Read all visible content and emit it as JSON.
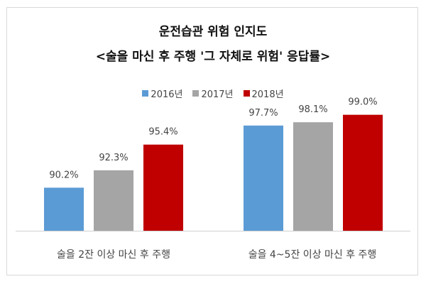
{
  "chart_data": {
    "type": "bar",
    "title": "운전습관 위험 인지도",
    "subtitle": "<술을 마신 후 주행 '그 자체로 위험' 응답률>",
    "categories": [
      "술을 2잔 이상 마신 후 주행",
      "술을 4~5잔 이상 마신 후 주행"
    ],
    "series": [
      {
        "name": "2016년",
        "color": "#5b9bd5",
        "values": [
          90.2,
          97.7
        ],
        "labels": [
          "90.2%",
          "97.7%"
        ]
      },
      {
        "name": "2017년",
        "color": "#a5a5a5",
        "values": [
          92.3,
          98.1
        ],
        "labels": [
          "92.3%",
          "98.1%"
        ]
      },
      {
        "name": "2018년",
        "color": "#c00000",
        "values": [
          95.4,
          99.0
        ],
        "labels": [
          "95.4%",
          "99.0%"
        ]
      }
    ],
    "ylim": [
      85,
      100
    ],
    "xlabel": "",
    "ylabel": "",
    "grid": false,
    "legend_position": "top"
  }
}
